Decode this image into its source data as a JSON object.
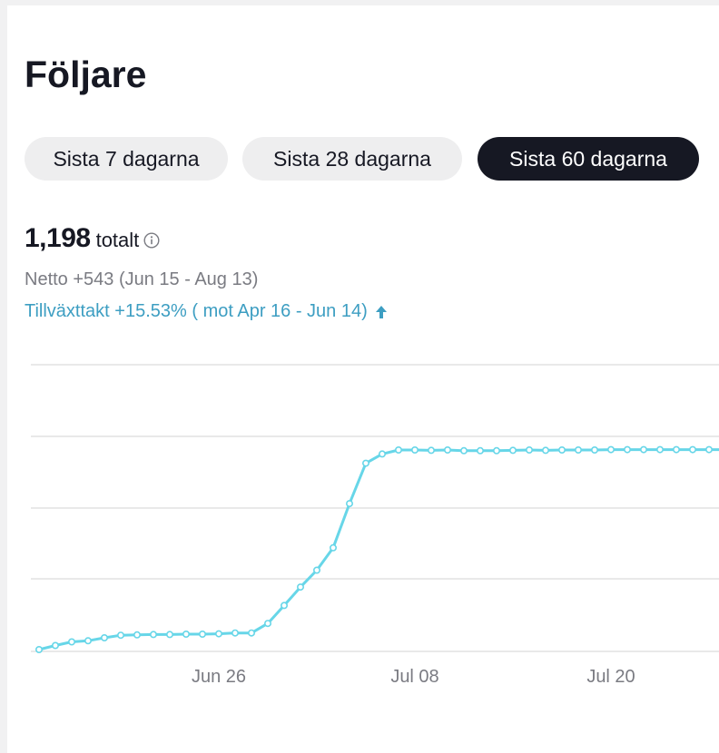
{
  "page": {
    "title": "Följare"
  },
  "ranges": [
    {
      "label": "Sista 7 dagarna",
      "active": false
    },
    {
      "label": "Sista 28 dagarna",
      "active": false
    },
    {
      "label": "Sista 60 dagarna",
      "active": true
    }
  ],
  "summary": {
    "total": "1,198",
    "total_unit": "totalt",
    "netto": "Netto +543 (Jun 15 - Aug 13)",
    "growth": "Tillväxttakt +15.53% ( mot Apr 16 - Jun 14)"
  },
  "colors": {
    "line": "#67d6e8",
    "growth_text": "#3d9ec2",
    "active_pill": "#161823",
    "inactive_pill": "#eeeeef",
    "grid": "#dcdcdc"
  },
  "icons": {
    "info": "info-circle-icon",
    "growth": "arrow-up-icon"
  },
  "chart_data": {
    "type": "line",
    "x_tick_labels": [
      "Jun 26",
      "Jul 08",
      "Jul 20"
    ],
    "x_tick_indices": [
      11,
      23,
      35
    ],
    "grid": true,
    "series": [
      {
        "values": [
          655,
          666,
          676,
          679,
          687,
          694,
          695,
          696,
          696,
          697,
          697,
          698,
          700,
          700,
          726,
          775,
          825,
          871,
          932,
          1052,
          1162,
          1187,
          1198,
          1198,
          1197,
          1198,
          1196,
          1196,
          1196,
          1197,
          1198,
          1197,
          1198,
          1198,
          1198,
          1199,
          1199,
          1199,
          1199,
          1199,
          1199,
          1199,
          1199,
          1199
        ]
      }
    ]
  }
}
